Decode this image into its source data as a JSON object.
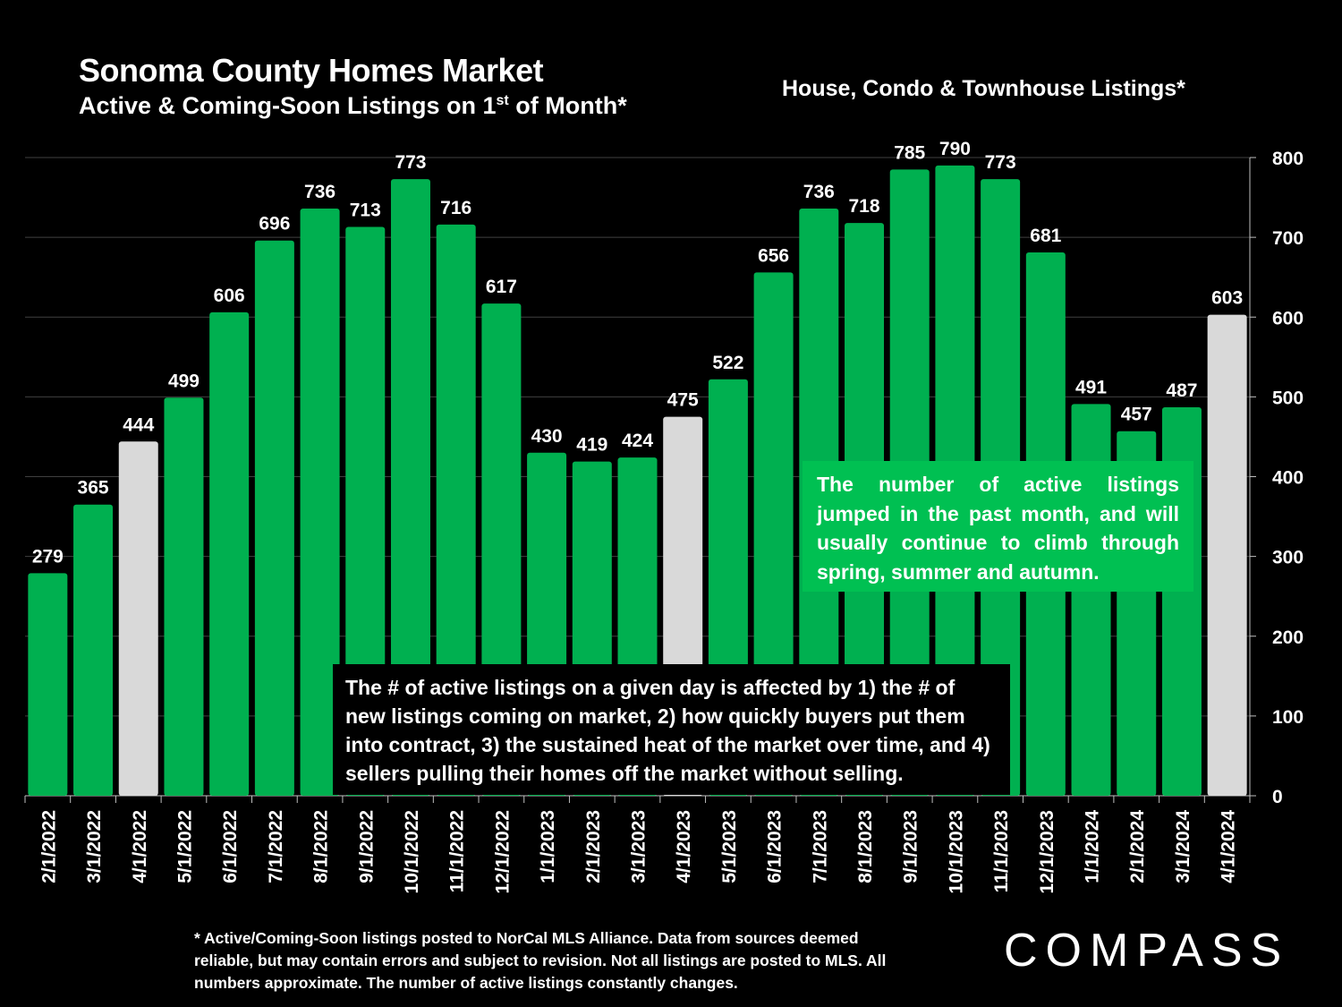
{
  "header": {
    "title": "Sonoma County Homes Market",
    "subtitle_main": "Active & Coming-Soon Listings on 1",
    "subtitle_sup": "st",
    "subtitle_end": " of Month*",
    "right_title": "House, Condo & Townhouse Listings*"
  },
  "callouts": {
    "green": "The number of active listings jumped in the past month, and will usually continue to climb through spring, summer and autumn.",
    "black": "The # of active listings on a given day is affected by 1) the # of new listings coming on market, 2) how quickly buyers put them into contract, 3) the sustained heat of the market over time, and 4) sellers pulling their homes off the market without selling."
  },
  "footnote": "* Active/Coming-Soon listings posted to NorCal MLS Alliance.  Data from sources deemed reliable, but may contain errors and subject to revision.  Not all listings are posted to MLS. All numbers approximate. The number of active listings constantly changes.",
  "logo": "COMPASS",
  "colors": {
    "bar": "#00b050",
    "highlight": "#d9d9d9",
    "background": "#000000",
    "text": "#ffffff",
    "grid": "#404040"
  },
  "chart_data": {
    "type": "bar",
    "title": "Sonoma County Homes Market",
    "xlabel": "",
    "ylabel": "",
    "ylim": [
      0,
      800
    ],
    "yticks": [
      0,
      100,
      200,
      300,
      400,
      500,
      600,
      700,
      800
    ],
    "grid": true,
    "categories": [
      "2/1/2022",
      "3/1/2022",
      "4/1/2022",
      "5/1/2022",
      "6/1/2022",
      "7/1/2022",
      "8/1/2022",
      "9/1/2022",
      "10/1/2022",
      "11/1/2022",
      "12/1/2022",
      "1/1/2023",
      "2/1/2023",
      "3/1/2023",
      "4/1/2023",
      "5/1/2023",
      "6/1/2023",
      "7/1/2023",
      "8/1/2023",
      "9/1/2023",
      "10/1/2023",
      "11/1/2023",
      "12/1/2023",
      "1/1/2024",
      "2/1/2024",
      "3/1/2024",
      "4/1/2024"
    ],
    "values": [
      279,
      365,
      444,
      499,
      606,
      696,
      736,
      713,
      773,
      716,
      617,
      430,
      419,
      424,
      475,
      522,
      656,
      736,
      718,
      785,
      790,
      773,
      681,
      491,
      457,
      487,
      603
    ],
    "highlighted": [
      "4/1/2022",
      "4/1/2023",
      "4/1/2024"
    ]
  }
}
